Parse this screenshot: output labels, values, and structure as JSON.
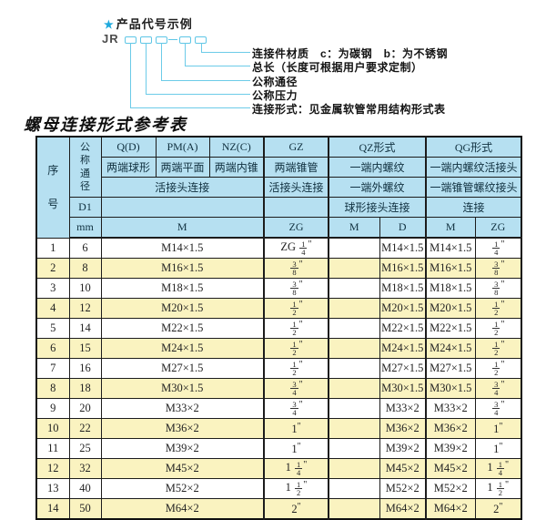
{
  "diagram": {
    "star": "★",
    "title": "产品代号示例",
    "code_prefix": "JR",
    "labels": [
      "连接件材质　c：为碳钢　b：为不锈钢",
      "总长（长度可根据用户要求定制）",
      "公称通径",
      "公称压力",
      "连接形式：见金属软管常用结构形式表"
    ]
  },
  "table": {
    "title": "螺母连接形式参考表",
    "header": {
      "seq": "序号",
      "dn": "公称通径",
      "d1": "D1",
      "mm": "mm",
      "groups": [
        "Q(D)",
        "PM(A)",
        "NZ(C)",
        "GZ",
        "QZ形式",
        "QG形式"
      ],
      "ends": [
        "两端球形",
        "两端平面",
        "两端内锥",
        "两端锥管",
        "一端内螺纹",
        "一端内螺纹活接头"
      ],
      "conn": [
        "活接头连接",
        "活接头连接",
        "一端外螺纹",
        "一端锥管螺纹接头"
      ],
      "conn2": [
        "球形接头连接",
        "连接"
      ],
      "units": [
        "M",
        "ZG",
        "M",
        "D",
        "M",
        "ZG"
      ]
    },
    "rows": [
      {
        "seq": "1",
        "dn": "6",
        "m": "M14×1.5",
        "gz": "ZG 1/4\"",
        "qz_m": "",
        "qz_d": "M14×1.5",
        "qg_m": "M14×1.5",
        "qg_zg": "1/4\""
      },
      {
        "seq": "2",
        "dn": "8",
        "m": "M16×1.5",
        "gz": "3/8\"",
        "qz_m": "",
        "qz_d": "M16×1.5",
        "qg_m": "M16×1.5",
        "qg_zg": "3/8\""
      },
      {
        "seq": "3",
        "dn": "10",
        "m": "M18×1.5",
        "gz": "3/8\"",
        "qz_m": "",
        "qz_d": "M18×1.5",
        "qg_m": "M18×1.5",
        "qg_zg": "3/8\""
      },
      {
        "seq": "4",
        "dn": "12",
        "m": "M20×1.5",
        "gz": "1/2\"",
        "qz_m": "",
        "qz_d": "M20×1.5",
        "qg_m": "M20×1.5",
        "qg_zg": "1/2\""
      },
      {
        "seq": "5",
        "dn": "14",
        "m": "M22×1.5",
        "gz": "1/2\"",
        "qz_m": "",
        "qz_d": "M22×1.5",
        "qg_m": "M22×1.5",
        "qg_zg": "1/2\""
      },
      {
        "seq": "6",
        "dn": "15",
        "m": "M24×1.5",
        "gz": "1/2\"",
        "qz_m": "",
        "qz_d": "M24×1.5",
        "qg_m": "M24×1.5",
        "qg_zg": "1/2\""
      },
      {
        "seq": "7",
        "dn": "16",
        "m": "M27×1.5",
        "gz": "1/2\"",
        "qz_m": "",
        "qz_d": "M27×1.5",
        "qg_m": "M27×1.5",
        "qg_zg": "1/2\""
      },
      {
        "seq": "8",
        "dn": "18",
        "m": "M30×1.5",
        "gz": "3/4\"",
        "qz_m": "",
        "qz_d": "M30×1.5",
        "qg_m": "M30×1.5",
        "qg_zg": "3/4\""
      },
      {
        "seq": "9",
        "dn": "20",
        "m": "M33×2",
        "gz": "3/4\"",
        "qz_m": "",
        "qz_d": "M33×2",
        "qg_m": "M33×2",
        "qg_zg": "3/4\""
      },
      {
        "seq": "10",
        "dn": "22",
        "m": "M36×2",
        "gz": "1\"",
        "qz_m": "",
        "qz_d": "M36×2",
        "qg_m": "M36×2",
        "qg_zg": "1\""
      },
      {
        "seq": "11",
        "dn": "25",
        "m": "M39×2",
        "gz": "1\"",
        "qz_m": "",
        "qz_d": "M39×2",
        "qg_m": "M39×2",
        "qg_zg": "1\""
      },
      {
        "seq": "12",
        "dn": "32",
        "m": "M45×2",
        "gz": "1 1/4\"",
        "qz_m": "",
        "qz_d": "M45×2",
        "qg_m": "M45×2",
        "qg_zg": "1 1/4\""
      },
      {
        "seq": "13",
        "dn": "40",
        "m": "M52×2",
        "gz": "1 1/2\"",
        "qz_m": "",
        "qz_d": "M52×2",
        "qg_m": "M52×2",
        "qg_zg": "1 1/2\""
      },
      {
        "seq": "14",
        "dn": "50",
        "m": "M64×2",
        "gz": "2\"",
        "qz_m": "",
        "qz_d": "M64×2",
        "qg_m": "M64×2",
        "qg_zg": "2\""
      }
    ]
  },
  "colors": {
    "accent_cyan": "#1ea9dd",
    "diagram_line": "#6ccbe8",
    "header_blue": "#b6e0f1",
    "row_yellow": "#faf3c0",
    "border": "#1c1c1c"
  }
}
